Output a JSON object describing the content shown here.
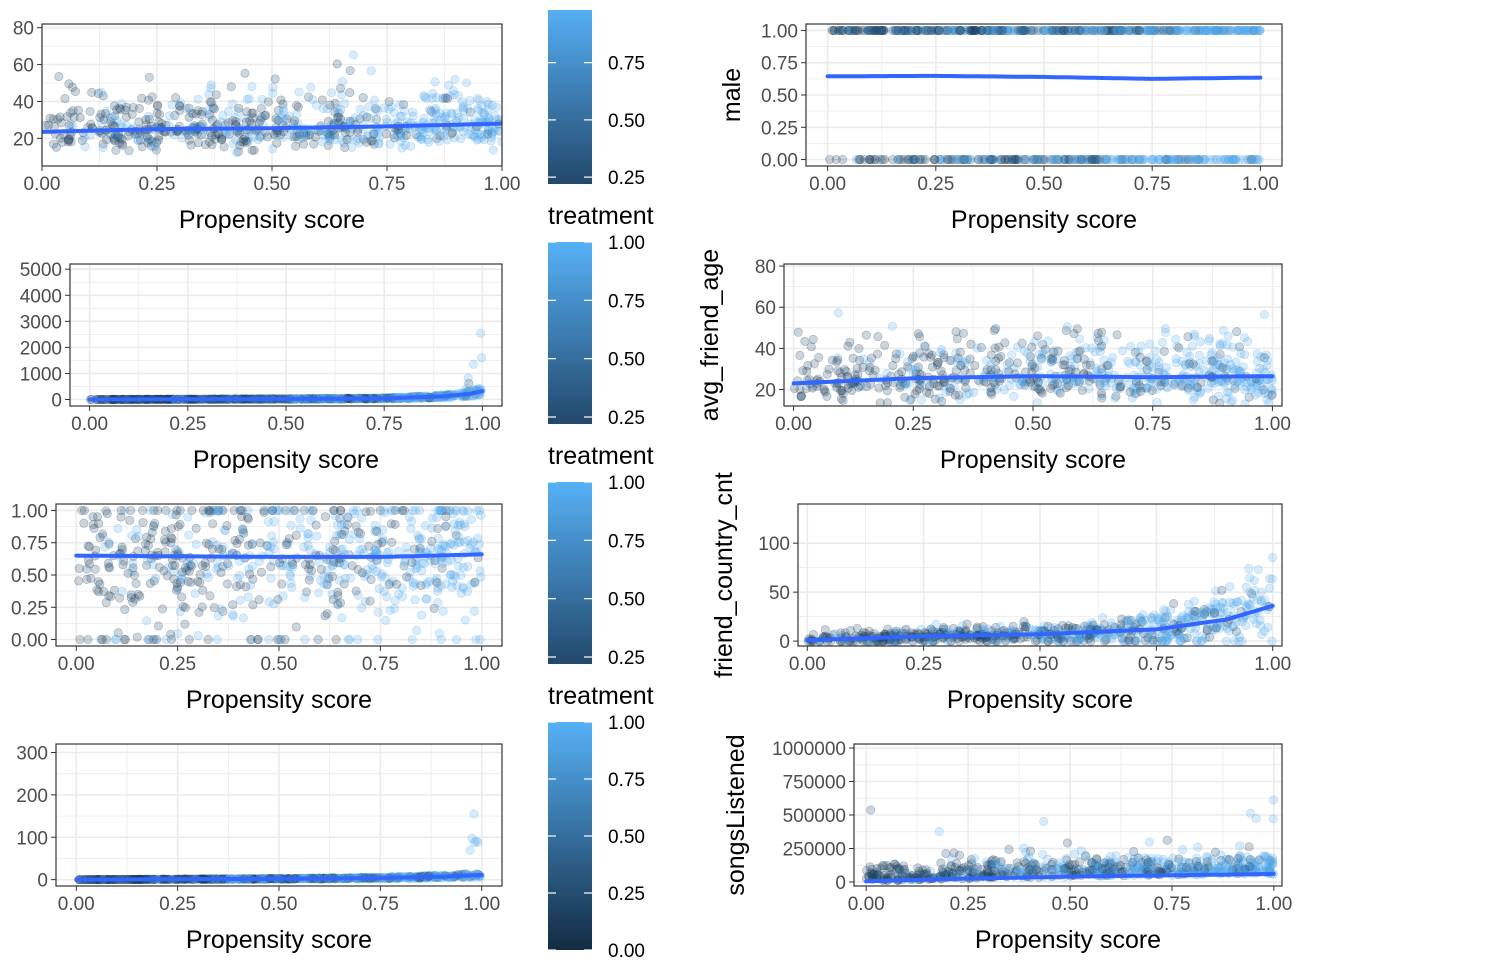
{
  "chart_data": [
    {
      "type": "scatter",
      "xlabel": "Propensity score",
      "ylabel": "",
      "xlim": [
        0,
        1
      ],
      "ylim": [
        5,
        82
      ],
      "xticks": [
        "0.00",
        "0.25",
        "0.50",
        "0.75",
        "1.00"
      ],
      "yticks": [
        "20",
        "40",
        "60",
        "80"
      ],
      "ytick_values": [
        20,
        40,
        60,
        80
      ],
      "points_shape": "dense-continuous",
      "smooth_x": [
        0,
        0.25,
        0.5,
        0.75,
        1
      ],
      "smooth_y": [
        23.5,
        25,
        25.5,
        26.5,
        28
      ]
    },
    {
      "type": "scatter",
      "xlabel": "Propensity score",
      "ylabel": "male",
      "xlim": [
        -0.05,
        1.05
      ],
      "ylim": [
        -0.05,
        1.05
      ],
      "xticks": [
        "0.00",
        "0.25",
        "0.50",
        "0.75",
        "1.00"
      ],
      "yticks": [
        "0.00",
        "0.25",
        "0.50",
        "0.75",
        "1.00"
      ],
      "ytick_values": [
        0,
        0.25,
        0.5,
        0.75,
        1
      ],
      "points_shape": "binary",
      "smooth_x": [
        0,
        0.25,
        0.5,
        0.75,
        1
      ],
      "smooth_y": [
        0.645,
        0.648,
        0.64,
        0.625,
        0.635
      ]
    },
    {
      "type": "scatter",
      "xlabel": "Propensity score",
      "ylabel": "",
      "xlim": [
        -0.05,
        1.05
      ],
      "ylim": [
        -250,
        5200
      ],
      "xticks": [
        "0.00",
        "0.25",
        "0.50",
        "0.75",
        "1.00"
      ],
      "yticks": [
        "0",
        "1000",
        "2000",
        "3000",
        "4000",
        "5000"
      ],
      "ytick_values": [
        0,
        1000,
        2000,
        3000,
        4000,
        5000
      ],
      "points_shape": "skewed",
      "smooth_x": [
        0,
        0.25,
        0.5,
        0.75,
        0.9,
        0.97,
        1
      ],
      "smooth_y": [
        0,
        10,
        20,
        40,
        120,
        220,
        320
      ]
    },
    {
      "type": "scatter",
      "xlabel": "Propensity score",
      "ylabel": "avg_friend_age",
      "xlim": [
        -0.02,
        1.02
      ],
      "ylim": [
        12,
        81
      ],
      "xticks": [
        "0.00",
        "0.25",
        "0.50",
        "0.75",
        "1.00"
      ],
      "yticks": [
        "20",
        "40",
        "60",
        "80"
      ],
      "ytick_values": [
        20,
        40,
        60,
        80
      ],
      "points_shape": "dense-continuous",
      "smooth_x": [
        0,
        0.25,
        0.5,
        0.75,
        1
      ],
      "smooth_y": [
        23,
        25.5,
        26.5,
        26,
        26.5
      ]
    },
    {
      "type": "scatter",
      "xlabel": "Propensity score",
      "ylabel": "",
      "xlim": [
        -0.05,
        1.05
      ],
      "ylim": [
        -0.05,
        1.05
      ],
      "xticks": [
        "0.00",
        "0.25",
        "0.50",
        "0.75",
        "1.00"
      ],
      "yticks": [
        "0.00",
        "0.25",
        "0.50",
        "0.75",
        "1.00"
      ],
      "ytick_values": [
        0,
        0.25,
        0.5,
        0.75,
        1
      ],
      "points_shape": "dense-fraction",
      "smooth_x": [
        0,
        0.25,
        0.5,
        0.75,
        1
      ],
      "smooth_y": [
        0.65,
        0.645,
        0.64,
        0.64,
        0.66
      ]
    },
    {
      "type": "scatter",
      "xlabel": "Propensity score",
      "ylabel": "friend_country_cnt",
      "xlim": [
        -0.02,
        1.02
      ],
      "ylim": [
        -5,
        140
      ],
      "xticks": [
        "0.00",
        "0.25",
        "0.50",
        "0.75",
        "1.00"
      ],
      "yticks": [
        "0",
        "50",
        "100"
      ],
      "ytick_values": [
        0,
        50,
        100
      ],
      "points_shape": "growing",
      "smooth_x": [
        0,
        0.25,
        0.5,
        0.75,
        0.9,
        1
      ],
      "smooth_y": [
        1,
        5,
        7,
        12,
        22,
        36
      ]
    },
    {
      "type": "scatter",
      "xlabel": "Propensity score",
      "ylabel": "",
      "xlim": [
        -0.05,
        1.05
      ],
      "ylim": [
        -15,
        320
      ],
      "xticks": [
        "0.00",
        "0.25",
        "0.50",
        "0.75",
        "1.00"
      ],
      "yticks": [
        "0",
        "100",
        "200",
        "300"
      ],
      "ytick_values": [
        0,
        100,
        200,
        300
      ],
      "points_shape": "skewed",
      "smooth_x": [
        0,
        0.25,
        0.5,
        0.75,
        0.9,
        1
      ],
      "smooth_y": [
        0,
        1,
        2,
        4,
        7,
        11
      ]
    },
    {
      "type": "scatter",
      "xlabel": "Propensity score",
      "ylabel": "songsListened",
      "xlim": [
        -0.03,
        1.02
      ],
      "ylim": [
        -30000,
        1030000
      ],
      "xticks": [
        "0.00",
        "0.25",
        "0.50",
        "0.75",
        "1.00"
      ],
      "yticks": [
        "0",
        "250000",
        "500000",
        "750000",
        "1000000"
      ],
      "ytick_values": [
        0,
        250000,
        500000,
        750000,
        1000000
      ],
      "points_shape": "songs",
      "smooth_x": [
        0,
        0.25,
        0.5,
        0.75,
        1
      ],
      "smooth_y": [
        5000,
        25000,
        40000,
        50000,
        60000
      ]
    }
  ],
  "legends": [
    {
      "title": "",
      "labels": [
        "0.75",
        "0.50",
        "0.25"
      ],
      "values": [
        0.75,
        0.5,
        0.25
      ],
      "range": [
        0.22,
        0.98
      ]
    },
    {
      "title": "treatment",
      "labels": [
        "1.00",
        "0.75",
        "0.50",
        "0.25"
      ],
      "values": [
        1,
        0.75,
        0.5,
        0.25
      ],
      "range": [
        0.22,
        1.0
      ]
    },
    {
      "title": "treatment",
      "labels": [
        "1.00",
        "0.75",
        "0.50",
        "0.25"
      ],
      "values": [
        1,
        0.75,
        0.5,
        0.25
      ],
      "range": [
        0.22,
        1.0
      ]
    },
    {
      "title": "treatment",
      "labels": [
        "1.00",
        "0.75",
        "0.50",
        "0.25",
        "0.00"
      ],
      "values": [
        1,
        0.75,
        0.5,
        0.25,
        0
      ],
      "range": [
        0.0,
        1.0
      ]
    }
  ],
  "colors": {
    "low": "#132B43",
    "high": "#56B1F7",
    "smooth": "#3366FF",
    "grid": "#ebebeb",
    "panel_border": "#333333"
  }
}
